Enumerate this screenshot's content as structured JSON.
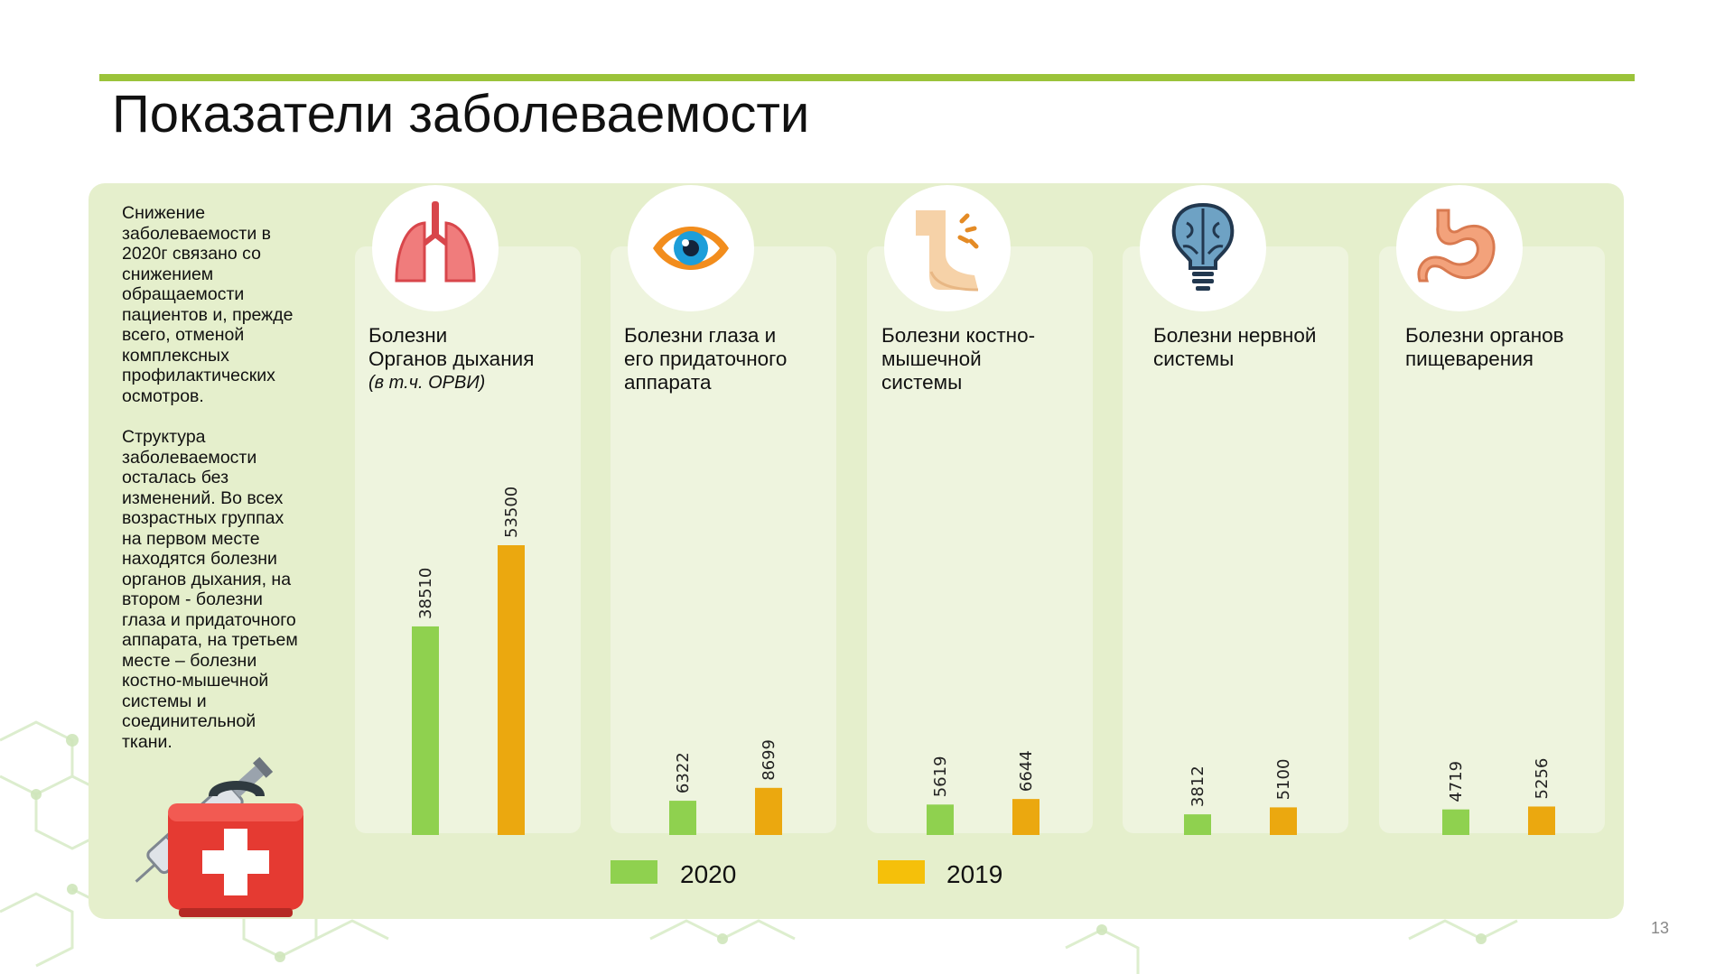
{
  "slide": {
    "title": "Показатели заболеваемости",
    "page_number": "13"
  },
  "notes": [
    "Снижение\nзаболеваемости в\n2020г связано со\nснижением\nобращаемости\nпациентов и, прежде\nвсего, отменой\nкомплексных\nпрофилактических\nосмотров.",
    "Структура\nзаболеваемости\nосталась без\nизменений. Во всех\nвозрастных группах\nна первом месте\nнаходятся болезни\nорганов дыхания, на\nвтором - болезни\nглаза и придаточного\nаппарата,  на третьем\nместе – болезни\nкостно-мышечной\nсистемы и\nсоединительной\nткани."
  ],
  "categories": [
    {
      "title": "Болезни\nОрганов дыхания",
      "subtitle": "(в т.ч. ОРВИ)",
      "icon": "lungs-icon"
    },
    {
      "title": "Болезни глаза и\nего придаточного\nаппарата",
      "subtitle": "",
      "icon": "eye-icon"
    },
    {
      "title": "Болезни костно-\nмышечной\nсистемы",
      "subtitle": "",
      "icon": "leg-joint-icon"
    },
    {
      "title": "Болезни нервной\nсистемы",
      "subtitle": "",
      "icon": "brain-bulb-icon"
    },
    {
      "title": "Болезни органов\nпищеварения",
      "subtitle": "",
      "icon": "stomach-icon"
    }
  ],
  "legend": [
    {
      "label": "2020",
      "color": "#8fd14f"
    },
    {
      "label": "2019",
      "color": "#f5c00a"
    }
  ],
  "chart_data": {
    "type": "bar",
    "categories": [
      "Болезни Органов дыхания (в т.ч. ОРВИ)",
      "Болезни глаза и его придаточного аппарата",
      "Болезни костно-мышечной системы",
      "Болезни нервной системы",
      "Болезни органов пищеварения"
    ],
    "series": [
      {
        "name": "2020",
        "values": [
          38510,
          6322,
          5619,
          3812,
          4719
        ],
        "color": "#8fd14f"
      },
      {
        "name": "2019",
        "values": [
          53500,
          8699,
          6644,
          5100,
          5256
        ],
        "color": "#eba80f"
      }
    ],
    "ylim": [
      0,
      60000
    ],
    "data_labels": "rotated-vertical",
    "legend_position": "bottom"
  }
}
